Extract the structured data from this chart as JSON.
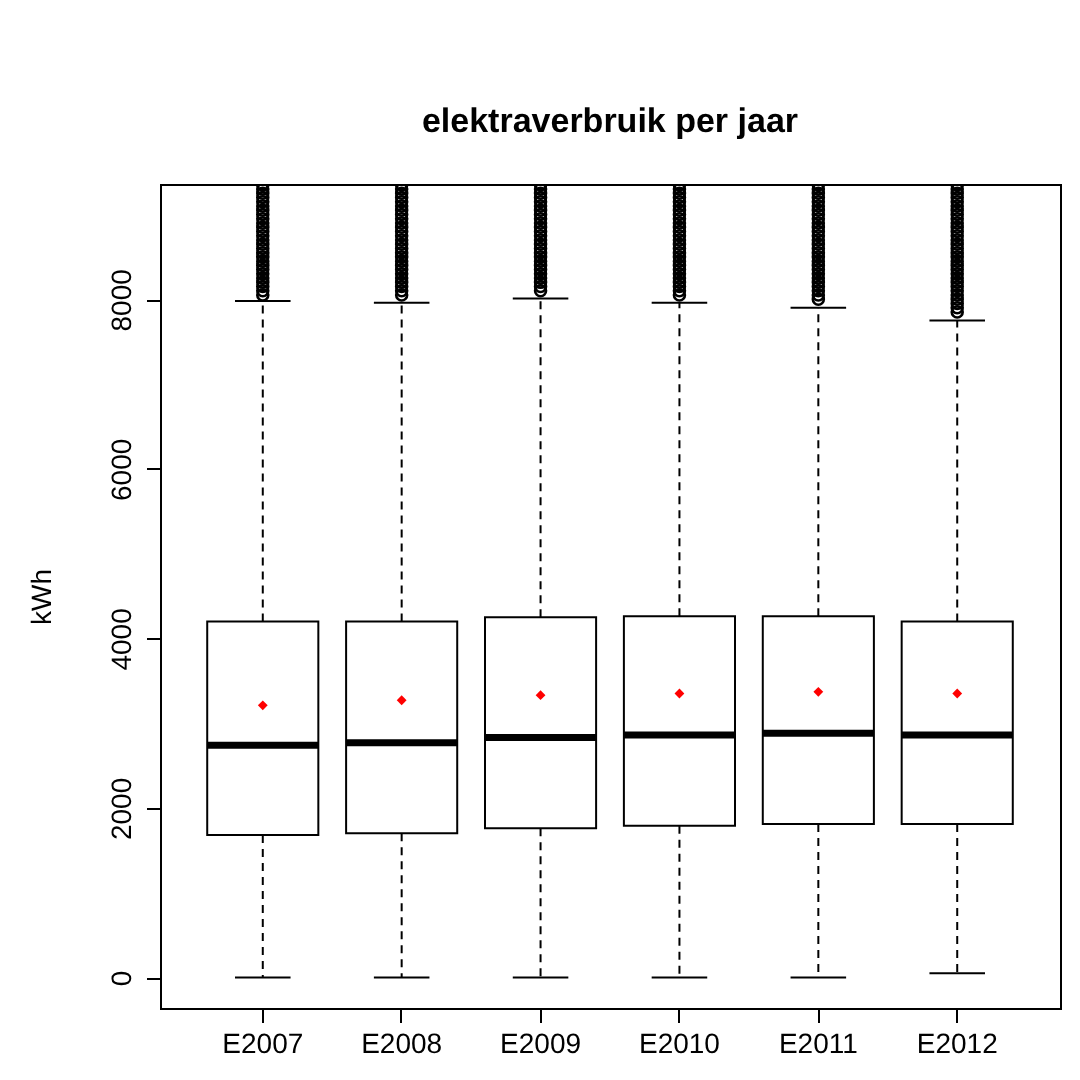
{
  "chart_data": {
    "type": "box",
    "title": "elektraverbruik per jaar",
    "ylabel": "kWh",
    "categories": [
      "E2007",
      "E2008",
      "E2009",
      "E2010",
      "E2011",
      "E2012"
    ],
    "boxes": [
      {
        "low": 0,
        "q1": 1680,
        "median": 2740,
        "q3": 4200,
        "high": 7980,
        "mean": 3210,
        "outliers": [
          8050,
          8100,
          8150,
          8200,
          8250,
          8300,
          8350,
          8400,
          8450,
          8500,
          8550,
          8600,
          8650,
          8700,
          8750,
          8800,
          8850,
          8900,
          8950,
          9000,
          9050,
          9100,
          9150,
          9200,
          9250,
          9300,
          9350
        ]
      },
      {
        "low": 0,
        "q1": 1700,
        "median": 2770,
        "q3": 4200,
        "high": 7960,
        "mean": 3270,
        "outliers": [
          8050,
          8100,
          8150,
          8200,
          8250,
          8300,
          8350,
          8400,
          8450,
          8500,
          8550,
          8600,
          8650,
          8700,
          8750,
          8800,
          8850,
          8900,
          8950,
          9000,
          9050,
          9100,
          9150,
          9200,
          9250,
          9300,
          9350
        ]
      },
      {
        "low": 0,
        "q1": 1760,
        "median": 2830,
        "q3": 4250,
        "high": 8010,
        "mean": 3330,
        "outliers": [
          8100,
          8150,
          8200,
          8250,
          8300,
          8350,
          8400,
          8450,
          8500,
          8550,
          8600,
          8650,
          8700,
          8750,
          8800,
          8850,
          8900,
          8950,
          9000,
          9050,
          9100,
          9150,
          9200,
          9250,
          9300,
          9350
        ]
      },
      {
        "low": 0,
        "q1": 1790,
        "median": 2860,
        "q3": 4260,
        "high": 7960,
        "mean": 3350,
        "outliers": [
          8050,
          8100,
          8150,
          8200,
          8250,
          8300,
          8350,
          8400,
          8450,
          8500,
          8550,
          8600,
          8650,
          8700,
          8750,
          8800,
          8850,
          8900,
          8950,
          9000,
          9050,
          9100,
          9150,
          9200,
          9250,
          9300,
          9350
        ]
      },
      {
        "low": 0,
        "q1": 1810,
        "median": 2880,
        "q3": 4260,
        "high": 7900,
        "mean": 3370,
        "outliers": [
          8000,
          8050,
          8100,
          8150,
          8200,
          8250,
          8300,
          8350,
          8400,
          8450,
          8500,
          8550,
          8600,
          8650,
          8700,
          8750,
          8800,
          8850,
          8900,
          8950,
          9000,
          9050,
          9100,
          9150,
          9200,
          9250,
          9300,
          9350
        ]
      },
      {
        "low": 50,
        "q1": 1810,
        "median": 2860,
        "q3": 4200,
        "high": 7750,
        "mean": 3350,
        "outliers": [
          7850,
          7900,
          7950,
          8000,
          8050,
          8100,
          8150,
          8200,
          8250,
          8300,
          8350,
          8400,
          8450,
          8500,
          8550,
          8600,
          8650,
          8700,
          8750,
          8800,
          8850,
          8900,
          8950,
          9000,
          9050,
          9100,
          9150,
          9200,
          9250,
          9300,
          9350
        ]
      }
    ],
    "ylim": [
      -360,
      9360
    ],
    "yticks": [
      0,
      2000,
      4000,
      6000,
      8000
    ],
    "grid": false
  }
}
